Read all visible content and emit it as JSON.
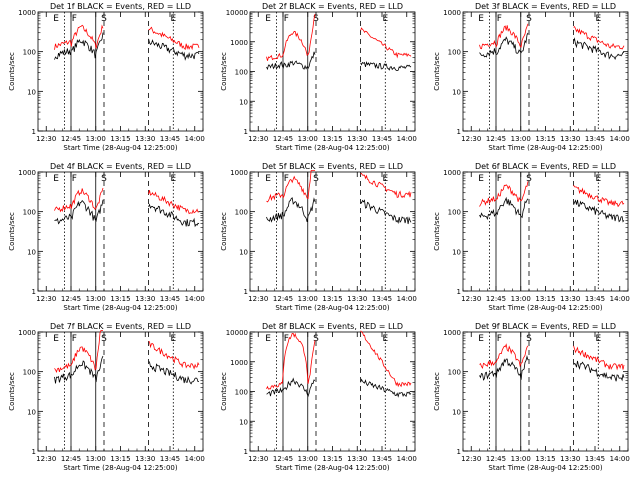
{
  "figure": {
    "ylabel": "Counts/sec",
    "xlabel": "Start Time (28-Aug-04 12:25:00)"
  },
  "chart_data": [
    {
      "type": "line",
      "title": "Det 1f BLACK = Events, RED = LLD",
      "ymax_tick": 1000,
      "markers": [
        "E",
        "F",
        "S",
        "E"
      ],
      "red_base": 150,
      "red_peak": 430,
      "black_base": 90,
      "black_peak": 200,
      "red_clip": false
    },
    {
      "type": "line",
      "title": "Det 2f BLACK = Events, RED = LLD",
      "ymax_tick": 10000,
      "markers": [
        "E",
        "F",
        "S",
        "E"
      ],
      "red_base": 300,
      "red_peak": 2200,
      "black_base": 150,
      "black_peak": 200,
      "red_clip": true
    },
    {
      "type": "line",
      "title": "Det 3f BLACK = Events, RED = LLD",
      "ymax_tick": 1000,
      "markers": [
        "E",
        "F",
        "S",
        "E"
      ],
      "red_base": 150,
      "red_peak": 420,
      "black_base": 90,
      "black_peak": 200,
      "red_clip": false
    },
    {
      "type": "line",
      "title": "Det 4f BLACK = Events, RED = LLD",
      "ymax_tick": 1000,
      "markers": [
        "E",
        "F",
        "S",
        "E"
      ],
      "red_base": 120,
      "red_peak": 350,
      "black_base": 60,
      "black_peak": 180,
      "red_clip": false
    },
    {
      "type": "line",
      "title": "Det 5f BLACK = Events, RED = LLD",
      "ymax_tick": 1000,
      "markers": [
        "E",
        "F",
        "S",
        "E"
      ],
      "red_base": 230,
      "red_peak": 700,
      "black_base": 70,
      "black_peak": 200,
      "red_clip": true
    },
    {
      "type": "line",
      "title": "Det 6f BLACK = Events, RED = LLD",
      "ymax_tick": 1000,
      "markers": [
        "E",
        "F",
        "S",
        "E"
      ],
      "red_base": 180,
      "red_peak": 450,
      "black_base": 80,
      "black_peak": 200,
      "red_clip": false
    },
    {
      "type": "line",
      "title": "Det 7f BLACK = Events, RED = LLD",
      "ymax_tick": 1000,
      "markers": [
        "E",
        "F",
        "S",
        "E"
      ],
      "red_base": 120,
      "red_peak": 420,
      "black_base": 70,
      "black_peak": 170,
      "red_clip": true
    },
    {
      "type": "line",
      "title": "Det 8f BLACK = Events, RED = LLD",
      "ymax_tick": 10000,
      "markers": [
        "E",
        "F",
        "S",
        "E"
      ],
      "red_base": 150,
      "red_peak": 9000,
      "black_base": 90,
      "black_peak": 250,
      "red_clip": true
    },
    {
      "type": "line",
      "title": "Det 9f BLACK = Events, RED = LLD",
      "ymax_tick": 1000,
      "markers": [
        "E",
        "F",
        "S",
        "E"
      ],
      "red_base": 150,
      "red_peak": 430,
      "black_base": 80,
      "black_peak": 200,
      "red_clip": false
    }
  ],
  "xticks": [
    "12:30",
    "12:45",
    "13:00",
    "13:15",
    "13:30",
    "13:45",
    "14:00"
  ],
  "colors": {
    "events": "#000000",
    "lld": "#ff0000",
    "axes": "#000000"
  }
}
